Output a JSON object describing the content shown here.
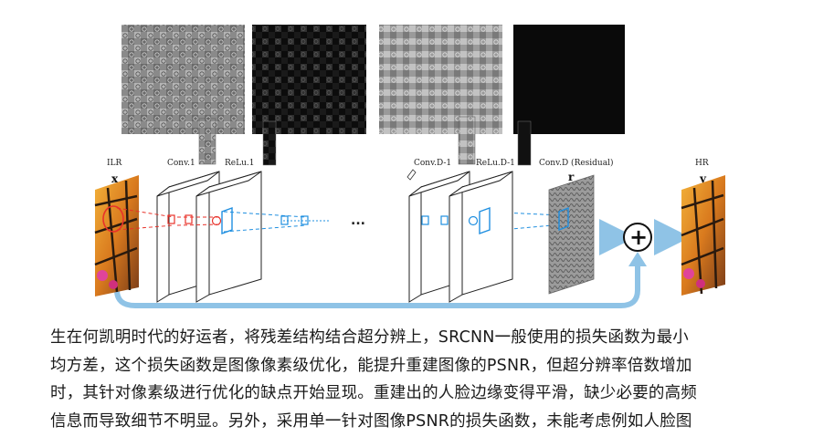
{
  "figure": {
    "labels": {
      "ilr": "ILR",
      "x": "x",
      "conv1": "Conv.1",
      "relu1": "ReLu.1",
      "convd1": "Conv.D-1",
      "relud1": "ReLu.D-1",
      "convd": "Conv.D (Residual)",
      "r": "r",
      "hr": "HR",
      "y": "y",
      "ellipsis": "...",
      "plus": "+"
    },
    "colors": {
      "arrow": "#8fc3e6",
      "red": "#e8322a",
      "blue": "#1f8fe0"
    }
  },
  "caption": {
    "lines": [
      "生在何凯明时代的好运者，将残差结构结合超分辨上，SRCNN一般使用的损失函数为最小",
      "均方差，这个损失函数是图像像素级优化，能提升重建图像的PSNR，但超分辨率倍数增加",
      "时，其针对像素级进行优化的缺点开始显现。重建出的人脸边缘变得平滑，缺少必要的高频",
      "信息而导致细节不明显。另外，采用单一针对图像PSNR的损失函数，未能考虑例如人脸图"
    ]
  }
}
